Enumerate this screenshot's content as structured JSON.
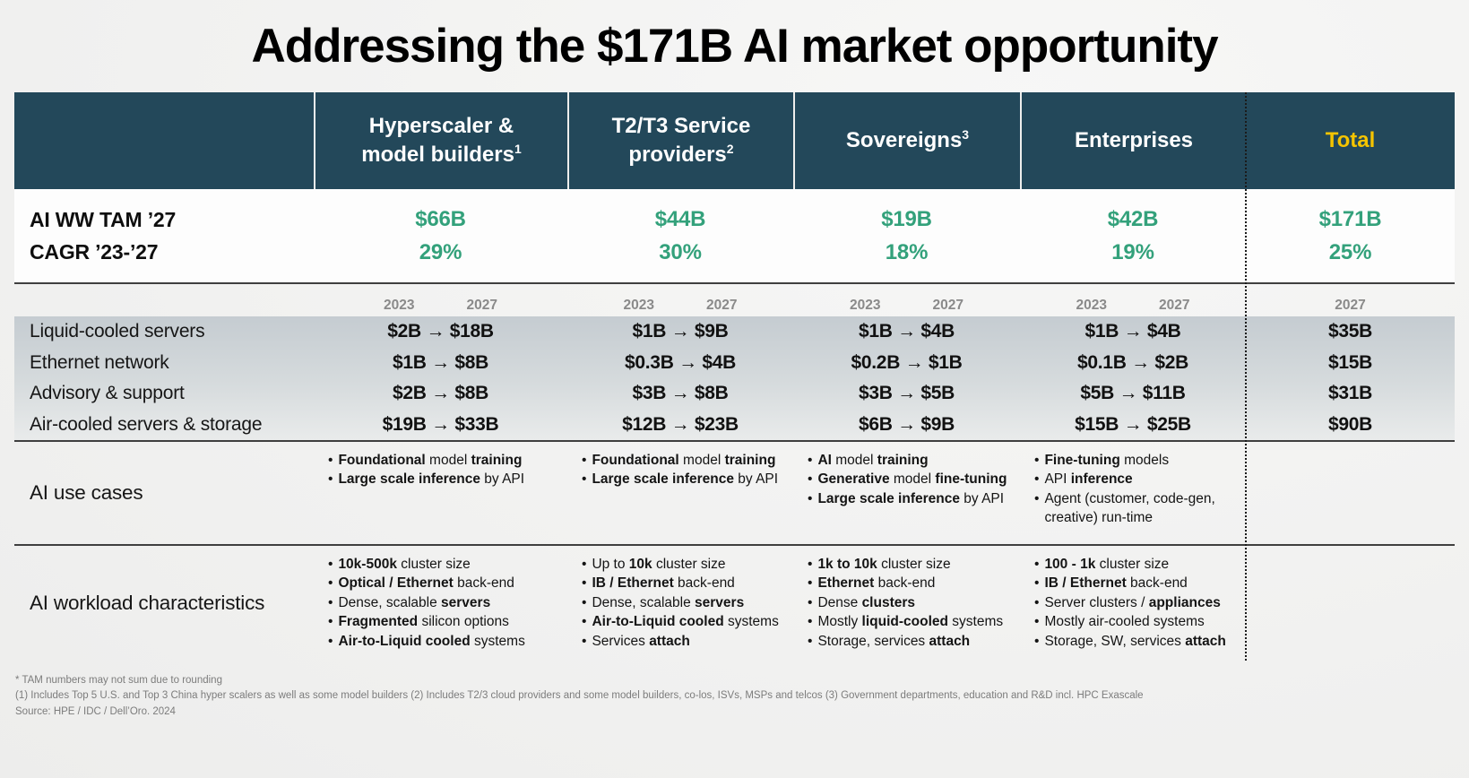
{
  "title": "Addressing the $171B AI market opportunity",
  "colors": {
    "header_bg": "#23485A",
    "accent_green": "#33A17B",
    "total_yellow": "#F5C400",
    "separator_line": "#3f3f3f"
  },
  "table": {
    "segments": [
      {
        "label": "Hyperscaler &\nmodel builders",
        "sup": "1",
        "key": "hyperscaler-model-builders"
      },
      {
        "label": "T2/T3 Service\nproviders",
        "sup": "2",
        "key": "t2-t3-service-providers"
      },
      {
        "label": "Sovereigns",
        "sup": "3",
        "key": "sovereigns"
      },
      {
        "label": "Enterprises",
        "sup": "",
        "key": "enterprises"
      }
    ],
    "total_label": "Total",
    "tam": {
      "label_tam": "AI WW TAM ’27",
      "label_cagr": "CAGR  ’23-’27",
      "values": [
        "$66B",
        "$44B",
        "$19B",
        "$42B"
      ],
      "cagr": [
        "29%",
        "30%",
        "18%",
        "19%"
      ],
      "total_value": "$171B",
      "total_cagr": "25%"
    },
    "year_from": "2023",
    "year_to": "2027",
    "rows": [
      {
        "label": "Liquid-cooled servers",
        "values": [
          "$2B → $18B",
          "$1B → $9B",
          "$1B → $4B",
          "$1B → $4B"
        ],
        "total": "$35B"
      },
      {
        "label": "Ethernet network",
        "values": [
          "$1B → $8B",
          "$0.3B → $4B",
          "$0.2B → $1B",
          "$0.1B → $2B"
        ],
        "total": "$15B"
      },
      {
        "label": "Advisory & support",
        "values": [
          "$2B → $8B",
          "$3B → $8B",
          "$3B → $5B",
          "$5B → $11B"
        ],
        "total": "$31B"
      },
      {
        "label": "Air-cooled servers & storage",
        "values": [
          "$19B → $33B",
          "$12B → $23B",
          "$6B → $9B",
          "$15B → $25B"
        ],
        "total": "$90B"
      }
    ],
    "use_cases": {
      "label": "AI use cases",
      "columns": [
        [
          "**Foundational** model **training**",
          "**Large scale inference** by API"
        ],
        [
          "**Foundational** model **training**",
          "**Large scale inference** by API"
        ],
        [
          "**AI** model **training**",
          "**Generative** model **fine-tuning**",
          "**Large scale inference** by API"
        ],
        [
          "**Fine-tuning** models",
          "API **inference**",
          "Agent (customer, code-gen, creative) run-time"
        ]
      ]
    },
    "workload": {
      "label": "AI workload characteristics",
      "columns": [
        [
          "**10k-500k** cluster size",
          "**Optical / Ethernet** back-end",
          "Dense, scalable **servers**",
          "**Fragmented** silicon options",
          "**Air-to-Liquid cooled** systems"
        ],
        [
          "Up to **10k** cluster size",
          "**IB / Ethernet** back-end",
          "Dense, scalable **servers**",
          "**Air-to-Liquid cooled** systems",
          "Services **attach**"
        ],
        [
          "**1k to 10k** cluster size",
          "**Ethernet** back-end",
          "Dense **clusters**",
          "Mostly **liquid-cooled** systems",
          "Storage, services **attach**"
        ],
        [
          "**100 - 1k** cluster size",
          "**IB / Ethernet** back-end",
          "Server clusters / **appliances**",
          "Mostly air-cooled systems",
          "Storage, SW, services **attach**"
        ]
      ]
    }
  },
  "footnotes": [
    "* TAM numbers may not sum due to rounding",
    "(1) Includes Top 5 U.S. and Top 3 China hyper scalers as well as some model builders (2) Includes T2/3 cloud providers and some model builders, co-los, ISVs, MSPs and telcos (3) Government departments, education and R&D incl. HPC Exascale",
    "Source: HPE / IDC / Dell’Oro. 2024"
  ]
}
